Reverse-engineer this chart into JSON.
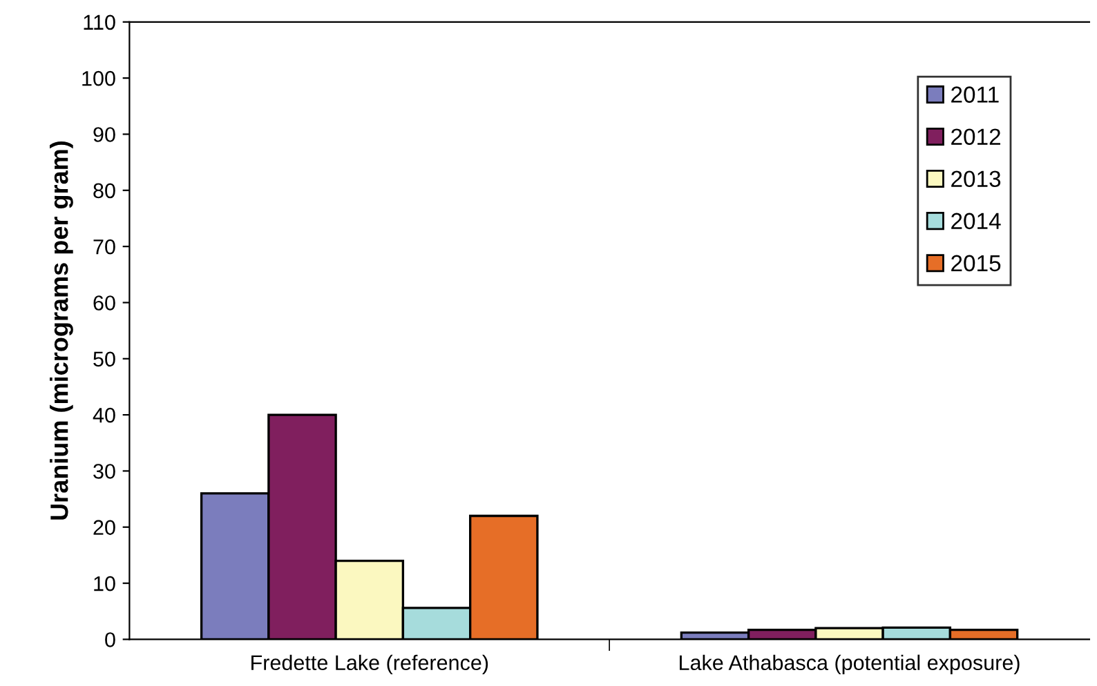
{
  "chart_data": {
    "type": "bar",
    "ylabel": "Uranium (micrograms per gram)",
    "categories": [
      "Fredette Lake (reference)",
      "Lake Athabasca (potential exposure)"
    ],
    "series": [
      {
        "name": "2011",
        "color": "#7b7dbd",
        "values": [
          26,
          1.2
        ]
      },
      {
        "name": "2012",
        "color": "#801f5e",
        "values": [
          40,
          1.7
        ]
      },
      {
        "name": "2013",
        "color": "#fbf8c0",
        "values": [
          14,
          2.0
        ]
      },
      {
        "name": "2014",
        "color": "#a6dcdc",
        "values": [
          5.6,
          2.1
        ]
      },
      {
        "name": "2015",
        "color": "#e66e27",
        "values": [
          22,
          1.7
        ]
      }
    ],
    "ylim": [
      0,
      110
    ],
    "yticks": [
      0,
      10,
      20,
      30,
      40,
      50,
      60,
      70,
      80,
      90,
      100,
      110
    ],
    "grid": false,
    "legend": "top right"
  }
}
